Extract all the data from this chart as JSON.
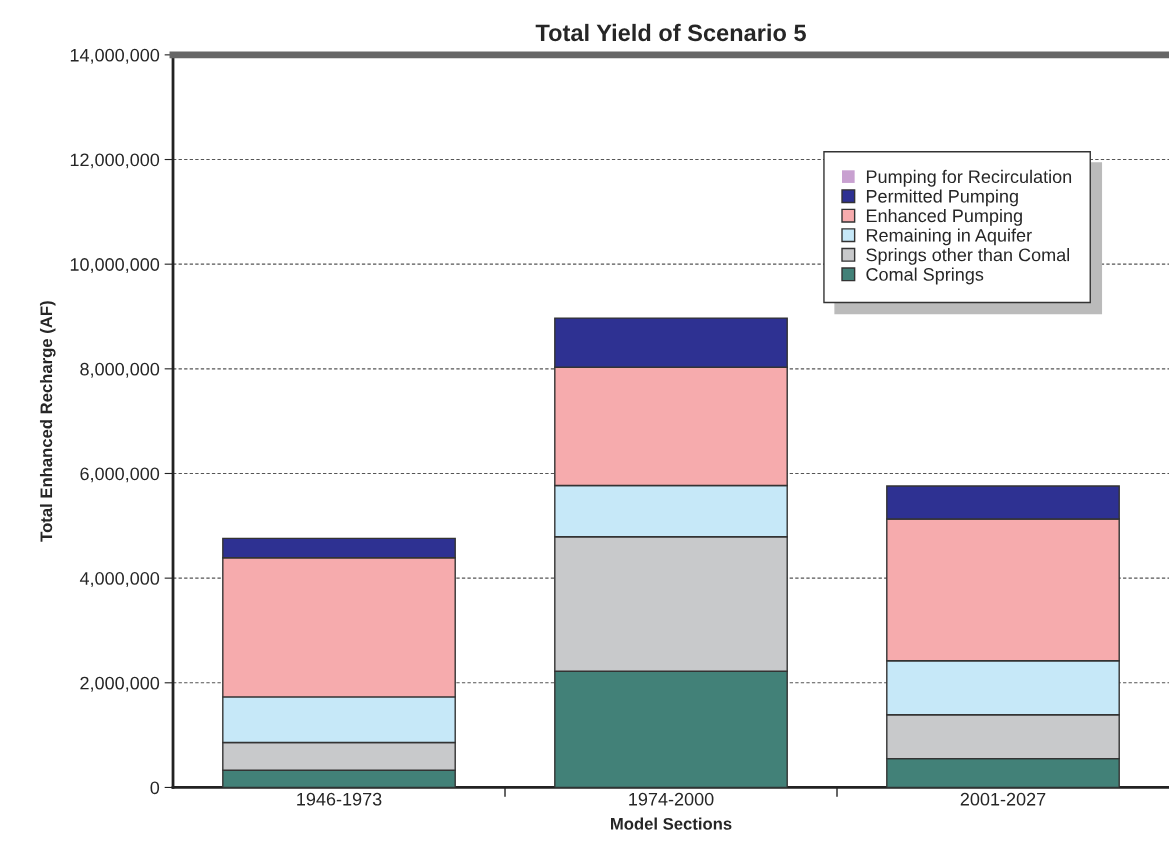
{
  "chart_data": {
    "type": "bar",
    "stacked": true,
    "title": "Total Yield of Scenario 5",
    "xlabel": "Model Sections",
    "ylabel": "Total Enhanced Recharge (AF)",
    "categories": [
      "1946-1973",
      "1974-2000",
      "2001-2027"
    ],
    "series": [
      {
        "name": "Comal Springs",
        "color": "#428178",
        "values": [
          330000,
          2220000,
          550000
        ]
      },
      {
        "name": "Springs other than Comal",
        "color": "#c8c9cb",
        "values": [
          530000,
          2570000,
          840000
        ]
      },
      {
        "name": "Remaining in Aquifer",
        "color": "#c6e8f8",
        "values": [
          870000,
          980000,
          1030000
        ]
      },
      {
        "name": "Enhanced Pumping",
        "color": "#f6abad",
        "values": [
          2660000,
          2260000,
          2710000
        ]
      },
      {
        "name": "Permitted Pumping",
        "color": "#2e3192",
        "values": [
          370000,
          940000,
          630000
        ]
      },
      {
        "name": "Pumping for Recirculation",
        "color": "#c8a0d0",
        "values": [
          0,
          0,
          0
        ]
      }
    ],
    "ylim": [
      0,
      14000000
    ],
    "yticks": [
      {
        "value": 0,
        "label": "0"
      },
      {
        "value": 2000000,
        "label": "2,000,000"
      },
      {
        "value": 4000000,
        "label": "4,000,000"
      },
      {
        "value": 6000000,
        "label": "6,000,000"
      },
      {
        "value": 8000000,
        "label": "8,000,000"
      },
      {
        "value": 10000000,
        "label": "10,000,000"
      },
      {
        "value": 12000000,
        "label": "12,000,000"
      },
      {
        "value": 14000000,
        "label": "14,000,000"
      }
    ],
    "grid": "y",
    "legend": "top right"
  }
}
